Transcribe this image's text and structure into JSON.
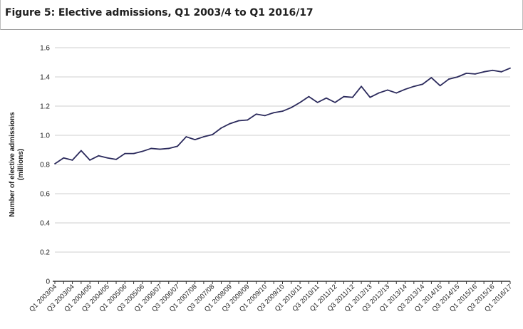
{
  "title": "Figure 5: Elective admissions, Q1 2003/4 to Q1 2016/17",
  "chart_data": {
    "type": "line",
    "ylabel_line1": "Number of elective admissions",
    "ylabel_line2": "(millions)",
    "ylim": [
      0,
      1.6
    ],
    "yticks": [
      "0",
      "0.2",
      "0.4",
      "0.6",
      "0.8",
      "1.0",
      "1.2",
      "1.4",
      "1.6"
    ],
    "grid": true,
    "line_color": "#2b2a5c",
    "x": [
      "Q1 2003/04",
      "Q2 2003/04",
      "Q3 2003/04",
      "Q4 2003/04",
      "Q1 2004/05",
      "Q2 2004/05",
      "Q3 2004/05",
      "Q4 2004/05",
      "Q1 2005/06",
      "Q2 2005/06",
      "Q3 2005/06",
      "Q4 2005/06",
      "Q1 2006/07",
      "Q2 2006/07",
      "Q3 2006/07",
      "Q4 2006/07",
      "Q1 2007/08",
      "Q2 2007/08",
      "Q3 2007/08",
      "Q4 2007/08",
      "Q1 2008/09",
      "Q2 2008/09",
      "Q3 2008/09",
      "Q4 2008/09",
      "Q1 2009/10",
      "Q2 2009/10",
      "Q3 2009/10",
      "Q4 2009/10",
      "Q1 2010/11",
      "Q2 2010/11",
      "Q3 2010/11",
      "Q4 2010/11",
      "Q1 2011/12",
      "Q2 2011/12",
      "Q3 2011/12",
      "Q4 2011/12",
      "Q1 2012/13",
      "Q2 2012/13",
      "Q3 2012/13",
      "Q4 2012/13",
      "Q1 2013/14",
      "Q2 2013/14",
      "Q3 2013/14",
      "Q4 2013/14",
      "Q1 2014/15",
      "Q2 2014/15",
      "Q3 2014/15",
      "Q4 2014/15",
      "Q1 2015/16",
      "Q2 2015/16",
      "Q3 2015/16",
      "Q4 2015/16",
      "Q1 2016/17"
    ],
    "xtick_labels": [
      "Q1 2003/04",
      "Q3 2003/04",
      "Q1 2004/05",
      "Q3 2004/05",
      "Q1 2005/06",
      "Q3 2005/06",
      "Q1 2006/07",
      "Q3 2006/07",
      "Q1 2007/08",
      "Q3 2007/08",
      "Q1 2008/09",
      "Q3 2008/09",
      "Q1 2009/10",
      "Q3 2009/10",
      "Q1 2010/11",
      "Q3 2010/11",
      "Q1 2011/12",
      "Q3 2011/12",
      "Q1 2012/13",
      "Q3 2012/13",
      "Q1 2013/14",
      "Q3 2013/14",
      "Q1 2014/15",
      "Q3 2014/15",
      "Q1 2015/16",
      "Q3 2015/16",
      "Q1 2016/17"
    ],
    "values": [
      0.805,
      0.845,
      0.83,
      0.895,
      0.83,
      0.86,
      0.845,
      0.835,
      0.875,
      0.875,
      0.89,
      0.91,
      0.905,
      0.91,
      0.925,
      0.99,
      0.97,
      0.99,
      1.005,
      1.05,
      1.08,
      1.1,
      1.105,
      1.145,
      1.135,
      1.155,
      1.165,
      1.19,
      1.225,
      1.265,
      1.225,
      1.255,
      1.225,
      1.265,
      1.26,
      1.335,
      1.26,
      1.29,
      1.31,
      1.29,
      1.315,
      1.335,
      1.35,
      1.395,
      1.34,
      1.385,
      1.4,
      1.425,
      1.42,
      1.435,
      1.445,
      1.435,
      1.46
    ]
  }
}
